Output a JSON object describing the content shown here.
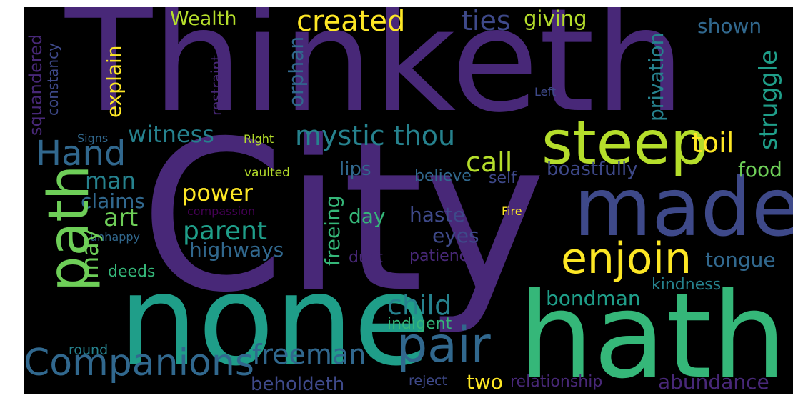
{
  "colors": {
    "background": "#000000",
    "page": "#ffffff",
    "palette": [
      "#440154",
      "#482878",
      "#3e4989",
      "#31688e",
      "#26828e",
      "#1f9e89",
      "#35b779",
      "#6ece58",
      "#b5de2b",
      "#fde725"
    ]
  },
  "words": [
    {
      "text": "Thinketh",
      "color": "#482878"
    },
    {
      "text": "City",
      "color": "#482878"
    },
    {
      "text": "none",
      "color": "#1f9e89"
    },
    {
      "text": "hath",
      "color": "#35b779"
    },
    {
      "text": "made",
      "color": "#3e4989"
    },
    {
      "text": "steep",
      "color": "#b5de2b"
    },
    {
      "text": "path",
      "color": "#6ece58"
    },
    {
      "text": "pair",
      "color": "#31688e"
    },
    {
      "text": "Companions",
      "color": "#31688e"
    },
    {
      "text": "enjoin",
      "color": "#fde725"
    },
    {
      "text": "Hand",
      "color": "#31688e"
    },
    {
      "text": "created",
      "color": "#fde725"
    },
    {
      "text": "mystic thou",
      "color": "#26828e"
    },
    {
      "text": "ties",
      "color": "#3e4989"
    },
    {
      "text": "giving",
      "color": "#b5de2b"
    },
    {
      "text": "Wealth",
      "color": "#b5de2b"
    },
    {
      "text": "shown",
      "color": "#31688e"
    },
    {
      "text": "struggle",
      "color": "#1f9e89"
    },
    {
      "text": "witness",
      "color": "#26828e"
    },
    {
      "text": "toil",
      "color": "#fde725"
    },
    {
      "text": "call",
      "color": "#b5de2b"
    },
    {
      "text": "child",
      "color": "#26828e"
    },
    {
      "text": "freeman",
      "color": "#31688e"
    },
    {
      "text": "power",
      "color": "#fde725"
    },
    {
      "text": "parent",
      "color": "#1f9e89"
    },
    {
      "text": "art",
      "color": "#6ece58"
    },
    {
      "text": "man",
      "color": "#26828e"
    },
    {
      "text": "claims",
      "color": "#31688e"
    },
    {
      "text": "highways",
      "color": "#31688e"
    },
    {
      "text": "may",
      "color": "#6ece58"
    },
    {
      "text": "boastfully",
      "color": "#3e4989"
    },
    {
      "text": "lips",
      "color": "#31688e"
    },
    {
      "text": "food",
      "color": "#6ece58"
    },
    {
      "text": "tongue",
      "color": "#31688e"
    },
    {
      "text": "bondman",
      "color": "#1f9e89"
    },
    {
      "text": "abundance",
      "color": "#482878"
    },
    {
      "text": "kindness",
      "color": "#26828e"
    },
    {
      "text": "haste",
      "color": "#3e4989"
    },
    {
      "text": "eyes",
      "color": "#3e4989"
    },
    {
      "text": "day",
      "color": "#35b779"
    },
    {
      "text": "beholdeth",
      "color": "#3e4989"
    },
    {
      "text": "two",
      "color": "#fde725"
    },
    {
      "text": "relationship",
      "color": "#482878"
    },
    {
      "text": "indigent",
      "color": "#35b779"
    },
    {
      "text": "believe",
      "color": "#31688e"
    },
    {
      "text": "self",
      "color": "#3e4989"
    },
    {
      "text": "dust",
      "color": "#482878"
    },
    {
      "text": "patience",
      "color": "#482878"
    },
    {
      "text": "deeds",
      "color": "#35b779"
    },
    {
      "text": "round",
      "color": "#26828e"
    },
    {
      "text": "reject",
      "color": "#3e4989"
    },
    {
      "text": "vaulted",
      "color": "#b5de2b"
    },
    {
      "text": "Right",
      "color": "#b5de2b"
    },
    {
      "text": "Signs",
      "color": "#31688e"
    },
    {
      "text": "compassion",
      "color": "#440154"
    },
    {
      "text": "unhappy",
      "color": "#31688e"
    },
    {
      "text": "Fire",
      "color": "#fde725"
    },
    {
      "text": "Left",
      "color": "#3e4989"
    },
    {
      "text": "explain",
      "color": "#fde725"
    },
    {
      "text": "squandered",
      "color": "#482878"
    },
    {
      "text": "constancy",
      "color": "#3e4989"
    },
    {
      "text": "restraint",
      "color": "#482878"
    },
    {
      "text": "orphan",
      "color": "#31688e"
    },
    {
      "text": "privation",
      "color": "#26828e"
    },
    {
      "text": "freeing",
      "color": "#35b779"
    }
  ]
}
